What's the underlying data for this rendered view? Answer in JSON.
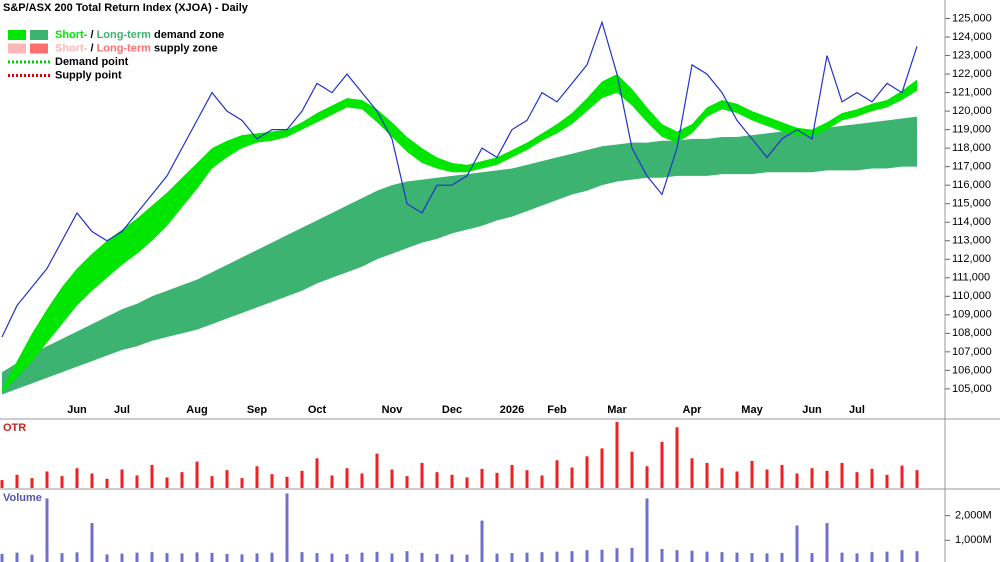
{
  "chart_data": [
    {
      "type": "line",
      "title": "S&P/ASX 200 Total Return Index (XJOA) - Daily",
      "legend": [
        {
          "swatches": [
            "#00e600",
            "#3cb371"
          ],
          "parts": [
            {
              "text": "Short-",
              "color": "#00e600"
            },
            {
              "text": " / "
            },
            {
              "text": "Long-term",
              "color": "#3cb371"
            },
            {
              "text": " demand zone"
            }
          ]
        },
        {
          "swatches": [
            "#ffb6b6",
            "#ff6f6f"
          ],
          "parts": [
            {
              "text": "Short-",
              "color": "#ffb6b6"
            },
            {
              "text": " / "
            },
            {
              "text": "Long-term",
              "color": "#ff6f6f"
            },
            {
              "text": " supply zone"
            }
          ]
        },
        {
          "line": "#00cc00",
          "parts": [
            {
              "text": "Demand point"
            }
          ]
        },
        {
          "line": "#dd0000",
          "parts": [
            {
              "text": "Supply point"
            }
          ]
        }
      ],
      "categories": [
        null,
        null,
        null,
        null,
        null,
        "Jun",
        null,
        null,
        "Jul",
        null,
        null,
        null,
        null,
        "Aug",
        null,
        null,
        null,
        "Sep",
        null,
        null,
        null,
        "Oct",
        null,
        null,
        null,
        null,
        "Nov",
        null,
        null,
        null,
        "Dec",
        null,
        null,
        null,
        "2026",
        null,
        null,
        "Feb",
        null,
        null,
        null,
        "Mar",
        null,
        null,
        null,
        null,
        "Apr",
        null,
        null,
        null,
        "May",
        null,
        null,
        null,
        "Jun",
        null,
        null,
        "Jul",
        null,
        null,
        null,
        null
      ],
      "series": [
        {
          "color": "#3cb371",
          "values": [
            105900,
            106400,
            106900,
            107300,
            107700,
            108100,
            108500,
            108900,
            109300,
            109600,
            110000,
            110300,
            110600,
            110900,
            111300,
            111700,
            112100,
            112500,
            112900,
            113300,
            113700,
            114100,
            114500,
            114900,
            115300,
            115700,
            116000,
            116200,
            116300,
            116400,
            116500,
            116600,
            116700,
            116800,
            116900,
            117100,
            117300,
            117500,
            117700,
            117900,
            118100,
            118200,
            118300,
            118300,
            118400,
            118400,
            118500,
            118500,
            118600,
            118600,
            118700,
            118800,
            118900,
            119000,
            119000,
            119100,
            119200,
            119300,
            119400,
            119500,
            119600,
            119700
          ],
          "lower": [
            104700,
            105000,
            105300,
            105600,
            105900,
            106200,
            106500,
            106800,
            107100,
            107300,
            107600,
            107800,
            108000,
            108200,
            108500,
            108800,
            109100,
            109400,
            109700,
            110000,
            110300,
            110700,
            111000,
            111300,
            111600,
            112000,
            112300,
            112600,
            112900,
            113100,
            113400,
            113600,
            113800,
            114100,
            114300,
            114600,
            114900,
            115200,
            115500,
            115700,
            116000,
            116200,
            116300,
            116400,
            116400,
            116500,
            116500,
            116500,
            116600,
            116600,
            116600,
            116700,
            116700,
            116700,
            116700,
            116800,
            116800,
            116800,
            116900,
            116900,
            117000,
            117000
          ]
        },
        {
          "color": "#00e600",
          "values": [
            105000,
            106500,
            108000,
            109300,
            110500,
            111500,
            112300,
            113000,
            113600,
            114200,
            114900,
            115600,
            116400,
            117200,
            118000,
            118400,
            118700,
            118800,
            118900,
            119000,
            119400,
            119900,
            120300,
            120700,
            120600,
            120100,
            119400,
            118600,
            118000,
            117500,
            117200,
            117100,
            117300,
            117500,
            117900,
            118300,
            118800,
            119300,
            119900,
            120700,
            121600,
            122000,
            121200,
            120200,
            119300,
            118900,
            119300,
            120200,
            120600,
            120400,
            120000,
            119700,
            119400,
            119100,
            119000,
            119400,
            119900,
            120100,
            120400,
            120600,
            121100,
            121700
          ],
          "lower": [
            104800,
            105600,
            106500,
            107500,
            108500,
            109500,
            110300,
            111000,
            111700,
            112300,
            113000,
            113800,
            114800,
            115800,
            116900,
            117500,
            118000,
            118300,
            118400,
            118600,
            119000,
            119400,
            119800,
            120200,
            120100,
            119400,
            118600,
            117800,
            117200,
            116900,
            116700,
            116700,
            116900,
            117100,
            117500,
            117900,
            118400,
            118800,
            119300,
            120000,
            120700,
            121000,
            120300,
            119400,
            118600,
            118300,
            118800,
            119700,
            120100,
            119900,
            119500,
            119200,
            118900,
            118700,
            118600,
            119000,
            119500,
            119700,
            120000,
            120200,
            120600,
            121100
          ]
        },
        {
          "color": "#2233cc",
          "values": [
            107800,
            109500,
            110500,
            111500,
            113000,
            114500,
            113500,
            113000,
            113500,
            114500,
            115500,
            116500,
            118000,
            119500,
            121000,
            120000,
            119500,
            118500,
            119000,
            119000,
            120000,
            121500,
            121000,
            122000,
            121000,
            120000,
            118500,
            115000,
            114500,
            116000,
            116000,
            116500,
            118000,
            117500,
            119000,
            119500,
            121000,
            120500,
            121500,
            122500,
            124800,
            122000,
            118000,
            116500,
            115500,
            118000,
            122500,
            122000,
            121000,
            119500,
            118500,
            117500,
            118500,
            119000,
            118500,
            123000,
            120500,
            121000,
            120500,
            121500,
            121000,
            123500
          ]
        }
      ],
      "ylim": [
        104400,
        126000
      ],
      "yticks": [
        {
          "value": 105000,
          "label": "105,000"
        },
        {
          "value": 106000,
          "label": "106,000"
        },
        {
          "value": 107000,
          "label": "107,000"
        },
        {
          "value": 108000,
          "label": "108,000"
        },
        {
          "value": 109000,
          "label": "109,000"
        },
        {
          "value": 110000,
          "label": "110,000"
        },
        {
          "value": 111000,
          "label": "111,000"
        },
        {
          "value": 112000,
          "label": "112,000"
        },
        {
          "value": 113000,
          "label": "113,000"
        },
        {
          "value": 114000,
          "label": "114,000"
        },
        {
          "value": 115000,
          "label": "115,000"
        },
        {
          "value": 116000,
          "label": "116,000"
        },
        {
          "value": 117000,
          "label": "117,000"
        },
        {
          "value": 118000,
          "label": "118,000"
        },
        {
          "value": 119000,
          "label": "119,000"
        },
        {
          "value": 120000,
          "label": "120,000"
        },
        {
          "value": 121000,
          "label": "121,000"
        },
        {
          "value": 122000,
          "label": "122,000"
        },
        {
          "value": 123000,
          "label": "123,000"
        },
        {
          "value": 124000,
          "label": "124,000"
        },
        {
          "value": 125000,
          "label": "125,000"
        }
      ]
    },
    {
      "type": "bar",
      "title": "OTR",
      "color": "#ee2222",
      "ylim": [
        0,
        100
      ],
      "values": [
        12,
        20,
        15,
        25,
        18,
        30,
        22,
        14,
        28,
        19,
        35,
        16,
        24,
        40,
        18,
        27,
        15,
        33,
        21,
        17,
        26,
        45,
        19,
        30,
        22,
        52,
        28,
        18,
        38,
        24,
        20,
        16,
        29,
        23,
        35,
        27,
        19,
        42,
        31,
        48,
        60,
        100,
        55,
        33,
        70,
        92,
        45,
        38,
        30,
        25,
        41,
        28,
        35,
        22,
        30,
        26,
        38,
        24,
        29,
        20,
        34,
        27
      ]
    },
    {
      "type": "bar",
      "title": "Volume",
      "color": "#7070cc",
      "ylim": [
        120,
        3000
      ],
      "yticks": [
        {
          "value": 1000,
          "label": "1,000M"
        },
        {
          "value": 2000,
          "label": "2,000M"
        }
      ],
      "values": [
        450,
        500,
        420,
        2700,
        480,
        510,
        1700,
        430,
        460,
        500,
        520,
        480,
        470,
        510,
        490,
        450,
        430,
        470,
        500,
        2900,
        520,
        480,
        460,
        440,
        500,
        530,
        470,
        560,
        490,
        450,
        430,
        420,
        1800,
        460,
        480,
        500,
        520,
        540,
        560,
        600,
        620,
        680,
        700,
        2700,
        650,
        600,
        580,
        540,
        520,
        500,
        480,
        470,
        490,
        1600,
        480,
        1700,
        500,
        470,
        520,
        540,
        600,
        560
      ]
    }
  ]
}
